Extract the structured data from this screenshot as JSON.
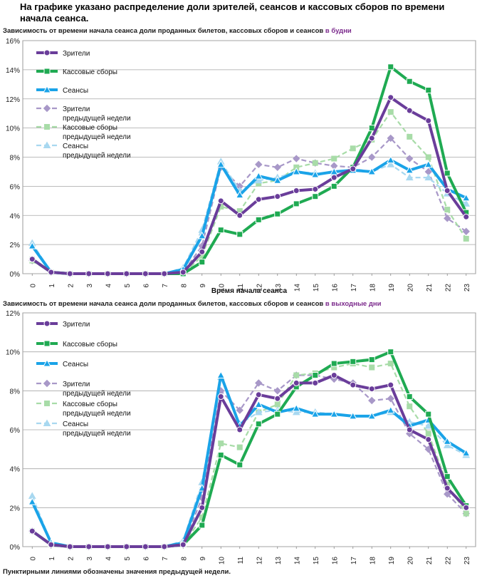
{
  "header": {
    "text": "На графике указано распределение доли зрителей, сеансов и кассовых сборов по времени начала сеанса."
  },
  "footnote": "Пунктирными линиями обозначены значения предыдущей недели.",
  "colors": {
    "viewers": "#6a3d9a",
    "revenue": "#1faa52",
    "sessions": "#1aa3e8",
    "viewers_prev": "#a898c8",
    "revenue_prev": "#a8dca8",
    "sessions_prev": "#a8d8f0"
  },
  "chart_data": [
    {
      "type": "line",
      "title": "Зависимость от времени начала сеанса доли проданных билетов, кассовых сборов и сеансов",
      "title_accent": "в будни",
      "xlabel": "Время начала сеанса",
      "ylabel": "",
      "x": [
        0,
        1,
        2,
        3,
        4,
        5,
        6,
        7,
        8,
        9,
        10,
        11,
        12,
        13,
        14,
        15,
        16,
        17,
        18,
        19,
        20,
        21,
        22,
        23
      ],
      "ylim": [
        0,
        16
      ],
      "yticks": [
        "0%",
        "2%",
        "4%",
        "6%",
        "8%",
        "10%",
        "12%",
        "14%",
        "16%"
      ],
      "grid": true,
      "legend_placement": "top-left",
      "series": [
        {
          "name": "Зрители",
          "style": "solid",
          "color_key": "viewers",
          "marker": "circle",
          "values": [
            1.0,
            0.1,
            0.0,
            0.0,
            0.0,
            0.0,
            0.0,
            0.0,
            0.1,
            1.5,
            5.0,
            4.0,
            5.1,
            5.3,
            5.7,
            5.8,
            6.6,
            7.2,
            9.3,
            12.1,
            11.2,
            10.5,
            5.7,
            3.9
          ]
        },
        {
          "name": "Кассовые сборы",
          "style": "solid",
          "color_key": "revenue",
          "marker": "square",
          "values": [
            1.0,
            0.1,
            0.0,
            0.0,
            0.0,
            0.0,
            0.0,
            0.0,
            0.0,
            0.8,
            3.0,
            2.7,
            3.7,
            4.1,
            4.8,
            5.3,
            6.0,
            7.3,
            10.0,
            14.2,
            13.2,
            12.6,
            6.9,
            4.2
          ]
        },
        {
          "name": "Сеансы",
          "style": "solid",
          "color_key": "sessions",
          "marker": "triangle",
          "values": [
            1.9,
            0.1,
            0.0,
            0.0,
            0.0,
            0.0,
            0.0,
            0.0,
            0.3,
            2.6,
            7.5,
            5.4,
            6.7,
            6.4,
            7.0,
            6.8,
            7.0,
            7.1,
            7.0,
            7.8,
            7.1,
            7.5,
            5.8,
            5.2
          ]
        },
        {
          "name": "Зрители предыдущей недели",
          "style": "dashed",
          "color_key": "viewers_prev",
          "marker": "diamond",
          "values": [
            0.9,
            0.1,
            0.0,
            0.0,
            0.0,
            0.0,
            0.0,
            0.0,
            0.1,
            1.9,
            7.3,
            6.0,
            7.5,
            7.3,
            7.9,
            7.6,
            7.4,
            7.3,
            8.0,
            9.3,
            7.9,
            7.0,
            3.8,
            2.9
          ]
        },
        {
          "name": "Кассовые сборы предыдущей недели",
          "style": "dashed",
          "color_key": "revenue_prev",
          "marker": "square",
          "values": [
            0.9,
            0.1,
            0.0,
            0.0,
            0.0,
            0.0,
            0.0,
            0.0,
            0.0,
            1.2,
            4.6,
            4.3,
            6.2,
            6.4,
            7.3,
            7.6,
            7.9,
            8.6,
            9.2,
            11.1,
            9.4,
            8.0,
            4.4,
            2.4
          ]
        },
        {
          "name": "Сеансы предыдущей недели",
          "style": "dashed",
          "color_key": "sessions_prev",
          "marker": "triangle",
          "values": [
            2.1,
            0.1,
            0.0,
            0.0,
            0.0,
            0.0,
            0.0,
            0.0,
            0.4,
            3.0,
            7.7,
            5.7,
            6.4,
            6.6,
            7.0,
            6.9,
            6.9,
            7.2,
            7.0,
            7.5,
            6.6,
            6.6,
            5.5,
            4.8
          ]
        }
      ]
    },
    {
      "type": "line",
      "title": "Зависимость от времени начала сеанса доли проданных билетов, кассовых сборов и сеансов",
      "title_accent": "в выходные дни",
      "xlabel": "",
      "ylabel": "",
      "x": [
        0,
        1,
        2,
        3,
        4,
        5,
        6,
        7,
        8,
        9,
        10,
        11,
        12,
        13,
        14,
        15,
        16,
        17,
        18,
        19,
        20,
        21,
        22,
        23
      ],
      "ylim": [
        0,
        12
      ],
      "yticks": [
        "0%",
        "2%",
        "4%",
        "6%",
        "8%",
        "10%",
        "12%"
      ],
      "grid": true,
      "legend_placement": "top-left",
      "series": [
        {
          "name": "Зрители",
          "style": "solid",
          "color_key": "viewers",
          "marker": "circle",
          "values": [
            0.8,
            0.1,
            0.0,
            0.0,
            0.0,
            0.0,
            0.0,
            0.0,
            0.1,
            2.0,
            7.7,
            6.0,
            7.8,
            7.6,
            8.4,
            8.4,
            8.8,
            8.3,
            8.1,
            8.3,
            6.0,
            5.5,
            3.0,
            2.0
          ]
        },
        {
          "name": "Кассовые сборы",
          "style": "solid",
          "color_key": "revenue",
          "marker": "square",
          "values": [
            0.8,
            0.1,
            0.0,
            0.0,
            0.0,
            0.0,
            0.0,
            0.0,
            0.1,
            1.1,
            4.7,
            4.2,
            6.3,
            6.8,
            8.2,
            8.8,
            9.4,
            9.5,
            9.6,
            10.0,
            7.7,
            6.8,
            3.6,
            2.1
          ]
        },
        {
          "name": "Сеансы",
          "style": "solid",
          "color_key": "sessions",
          "marker": "triangle",
          "values": [
            2.3,
            0.2,
            0.0,
            0.0,
            0.0,
            0.0,
            0.0,
            0.0,
            0.2,
            3.0,
            8.8,
            6.2,
            7.3,
            6.9,
            7.1,
            6.8,
            6.8,
            6.7,
            6.7,
            7.0,
            6.2,
            6.5,
            5.4,
            4.8
          ]
        },
        {
          "name": "Зрители предыдущей недели",
          "style": "dashed",
          "color_key": "viewers_prev",
          "marker": "diamond",
          "values": [
            0.8,
            0.1,
            0.0,
            0.0,
            0.0,
            0.0,
            0.0,
            0.0,
            0.1,
            2.5,
            8.0,
            7.0,
            8.4,
            8.0,
            8.8,
            8.8,
            8.6,
            8.4,
            7.5,
            7.6,
            5.8,
            5.0,
            2.7,
            1.7
          ]
        },
        {
          "name": "Кассовые сборы предыдущей недели",
          "style": "dashed",
          "color_key": "revenue_prev",
          "marker": "square",
          "values": [
            0.8,
            0.1,
            0.0,
            0.0,
            0.0,
            0.0,
            0.0,
            0.0,
            0.1,
            1.5,
            5.3,
            5.1,
            6.9,
            7.3,
            8.8,
            8.9,
            9.2,
            9.4,
            9.2,
            9.4,
            7.2,
            5.8,
            3.2,
            1.7
          ]
        },
        {
          "name": "Сеансы предыдущей недели",
          "style": "dashed",
          "color_key": "sessions_prev",
          "marker": "triangle",
          "values": [
            2.6,
            0.2,
            0.0,
            0.0,
            0.0,
            0.0,
            0.0,
            0.0,
            0.3,
            3.3,
            8.7,
            6.3,
            6.9,
            7.0,
            6.9,
            6.9,
            6.8,
            6.7,
            6.7,
            6.9,
            6.4,
            6.2,
            5.2,
            4.7
          ]
        }
      ]
    }
  ]
}
